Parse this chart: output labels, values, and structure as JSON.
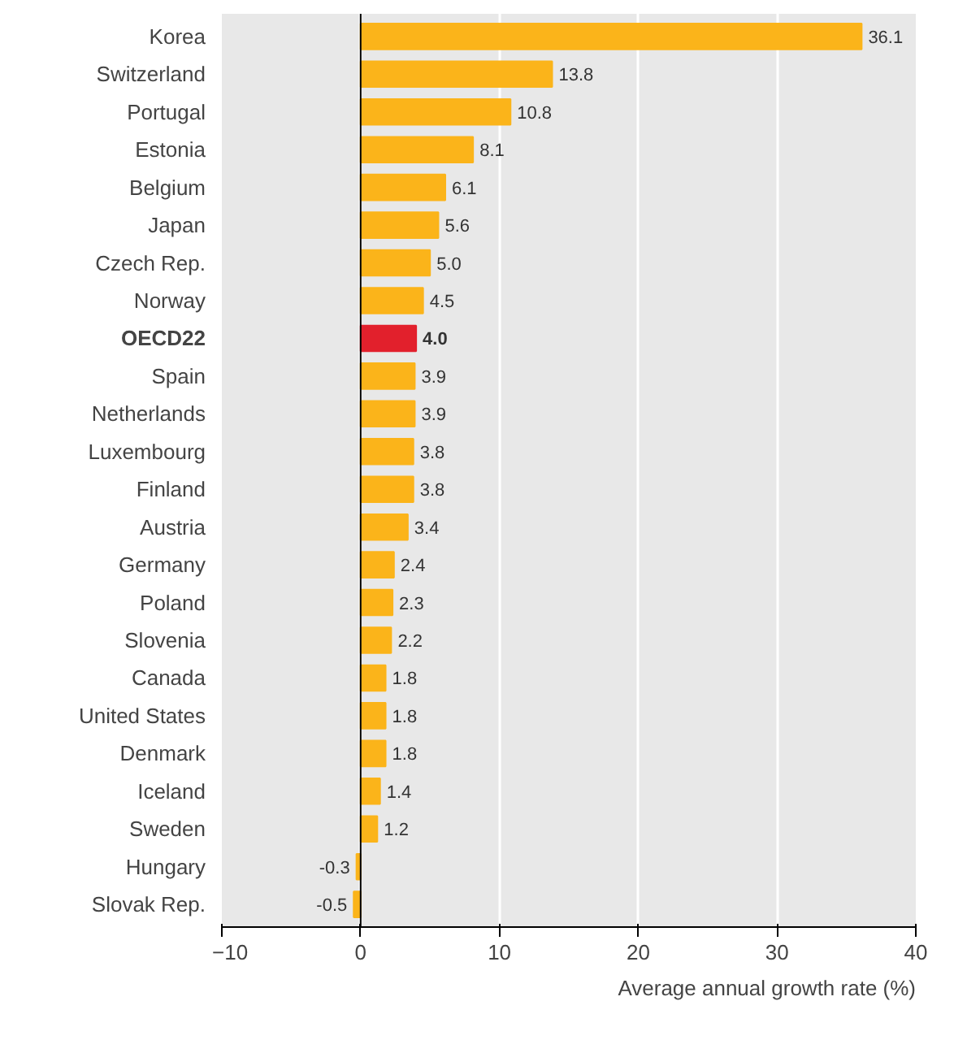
{
  "chart_data": {
    "type": "bar",
    "orientation": "horizontal",
    "categories": [
      "Korea",
      "Switzerland",
      "Portugal",
      "Estonia",
      "Belgium",
      "Japan",
      "Czech Rep.",
      "Norway",
      "OECD22",
      "Spain",
      "Netherlands",
      "Luxembourg",
      "Finland",
      "Austria",
      "Germany",
      "Poland",
      "Slovenia",
      "Canada",
      "United States",
      "Denmark",
      "Iceland",
      "Sweden",
      "Hungary",
      "Slovak Rep."
    ],
    "values": [
      36.1,
      13.8,
      10.8,
      8.1,
      6.1,
      5.6,
      5.0,
      4.5,
      4.0,
      3.9,
      3.9,
      3.8,
      3.8,
      3.4,
      2.4,
      2.3,
      2.2,
      1.8,
      1.8,
      1.8,
      1.4,
      1.2,
      -0.3,
      -0.5
    ],
    "value_labels": [
      "36.1",
      "13.8",
      "10.8",
      "8.1",
      "6.1",
      "5.6",
      "5.0",
      "4.5",
      "4.0",
      "3.9",
      "3.9",
      "3.8",
      "3.8",
      "3.4",
      "2.4",
      "2.3",
      "2.2",
      "1.8",
      "1.8",
      "1.8",
      "1.4",
      "1.2",
      "-0.3",
      "-0.5"
    ],
    "colors": [
      "#fbb41a",
      "#fbb41a",
      "#fbb41a",
      "#fbb41a",
      "#fbb41a",
      "#fbb41a",
      "#fbb41a",
      "#fbb41a",
      "#e2202c",
      "#fbb41a",
      "#fbb41a",
      "#fbb41a",
      "#fbb41a",
      "#fbb41a",
      "#fbb41a",
      "#fbb41a",
      "#fbb41a",
      "#fbb41a",
      "#fbb41a",
      "#fbb41a",
      "#fbb41a",
      "#fbb41a",
      "#fbb41a",
      "#fbb41a"
    ],
    "xlabel": "Average annual growth rate (%)",
    "xlim": [
      -10,
      40
    ],
    "xticks": [
      -10,
      0,
      10,
      20,
      30,
      40
    ],
    "grid": "x"
  }
}
